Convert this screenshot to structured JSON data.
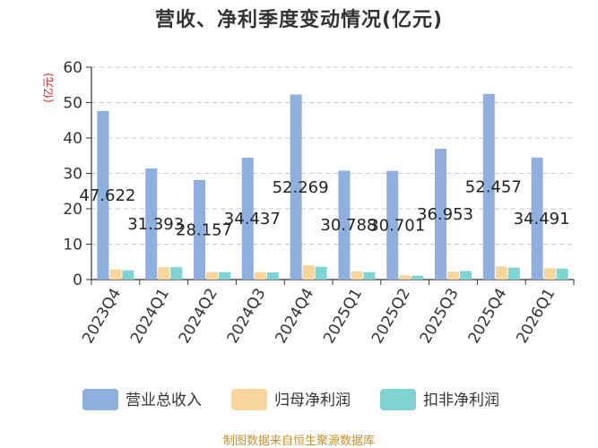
{
  "title": "营收、净利季度变动情况(亿元)",
  "source": "制图数据来自恒生聚源数据库",
  "chart_data": {
    "type": "bar",
    "title": "营收、净利季度变动情况(亿元)",
    "ylabel": "(亿元)",
    "ylim": [
      0,
      60
    ],
    "yticks": [
      0,
      10,
      20,
      30,
      40,
      50,
      60
    ],
    "grid": true,
    "legend_position": "bottom",
    "categories": [
      "2023Q4",
      "2024Q1",
      "2024Q2",
      "2024Q3",
      "2024Q4",
      "2025Q1",
      "2025Q2",
      "2025Q3",
      "2025Q4",
      "2026Q1"
    ],
    "series": [
      {
        "name": "营业总收入",
        "color": "#8fb0df",
        "values": [
          47.622,
          31.393,
          28.157,
          34.437,
          52.269,
          30.788,
          30.701,
          36.953,
          52.457,
          34.491
        ],
        "labels": [
          "47.622",
          "31.393",
          "28.157",
          "34.437",
          "52.269",
          "30.788",
          "30.701",
          "36.953",
          "52.457",
          "34.491"
        ]
      },
      {
        "name": "归母净利润",
        "color": "#f8d59a",
        "values": [
          2.9,
          3.5,
          2.1,
          2.1,
          4.0,
          2.3,
          1.2,
          2.2,
          3.7,
          3.2
        ]
      },
      {
        "name": "扣非净利润",
        "color": "#7fd3d3",
        "values": [
          2.6,
          3.5,
          2.1,
          2.0,
          3.6,
          2.1,
          1.1,
          2.4,
          3.4,
          3.1
        ]
      }
    ]
  }
}
